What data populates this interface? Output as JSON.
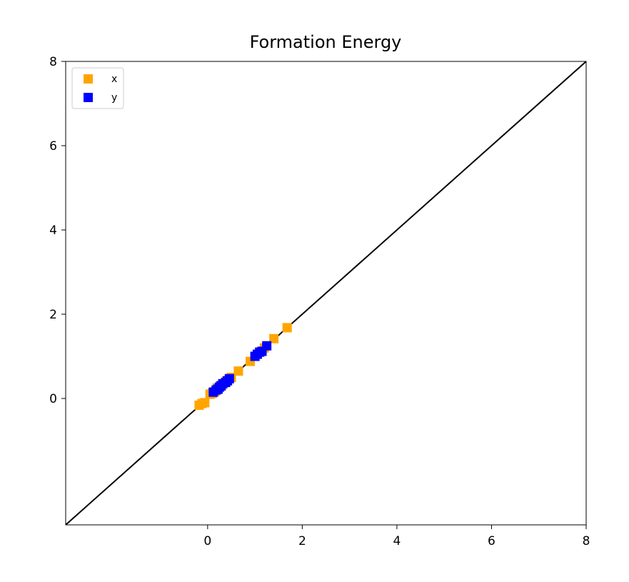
{
  "chart_data": {
    "type": "scatter",
    "title": "Formation Energy",
    "xlabel": "",
    "ylabel": "",
    "xlim": [
      -3,
      8
    ],
    "ylim": [
      -3,
      8
    ],
    "xticks": [
      0,
      2,
      4,
      6,
      8
    ],
    "yticks": [
      0,
      2,
      4,
      6,
      8
    ],
    "grid": false,
    "legend_position": "top-left",
    "reference_line": {
      "from": [
        -3,
        -3
      ],
      "to": [
        8,
        8
      ],
      "color": "#000000"
    },
    "series": [
      {
        "name": "x",
        "color": "#ffa500",
        "marker": "square",
        "points": [
          [
            -0.18,
            -0.16
          ],
          [
            -0.12,
            -0.12
          ],
          [
            -0.06,
            -0.1
          ],
          [
            0.05,
            0.1
          ],
          [
            0.1,
            0.12
          ],
          [
            0.15,
            0.16
          ],
          [
            0.2,
            0.25
          ],
          [
            0.3,
            0.3
          ],
          [
            0.4,
            0.42
          ],
          [
            0.5,
            0.5
          ],
          [
            0.65,
            0.65
          ],
          [
            0.9,
            0.88
          ],
          [
            1.0,
            1.0
          ],
          [
            1.1,
            1.1
          ],
          [
            1.2,
            1.2
          ],
          [
            1.4,
            1.42
          ],
          [
            1.68,
            1.68
          ]
        ]
      },
      {
        "name": "y",
        "color": "#0000ff",
        "marker": "square",
        "points": [
          [
            0.12,
            0.15
          ],
          [
            0.18,
            0.2
          ],
          [
            0.22,
            0.22
          ],
          [
            0.25,
            0.27
          ],
          [
            0.28,
            0.3
          ],
          [
            0.32,
            0.35
          ],
          [
            0.38,
            0.38
          ],
          [
            0.42,
            0.42
          ],
          [
            0.46,
            0.47
          ],
          [
            1.0,
            1.0
          ],
          [
            1.05,
            1.05
          ],
          [
            1.1,
            1.1
          ],
          [
            1.15,
            1.12
          ],
          [
            1.25,
            1.25
          ]
        ]
      }
    ]
  }
}
